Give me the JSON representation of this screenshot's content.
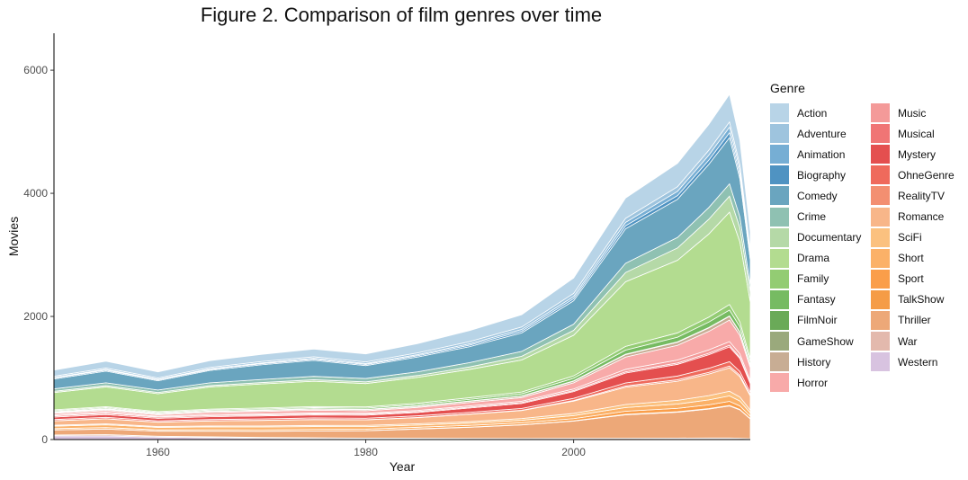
{
  "chart_data": {
    "type": "area",
    "title": "Figure 2. Comparison of film genres over time",
    "xlabel": "Year",
    "ylabel": "Movies",
    "xlim": [
      1950,
      2017
    ],
    "ylim": [
      0,
      6600
    ],
    "x_ticks": [
      1960,
      1980,
      2000
    ],
    "y_ticks": [
      0,
      2000,
      4000,
      6000
    ],
    "grid": false,
    "legend_title": "Genre",
    "legend_position": "right",
    "x": [
      1950,
      1955,
      1960,
      1965,
      1970,
      1975,
      1980,
      1985,
      1990,
      1995,
      2000,
      2005,
      2010,
      2013,
      2015,
      2016,
      2017
    ],
    "series": [
      {
        "name": "Action",
        "color": "#b8d4e7",
        "values": [
          100,
          110,
          100,
          110,
          115,
          125,
          130,
          150,
          180,
          200,
          250,
          330,
          380,
          420,
          450,
          400,
          300
        ]
      },
      {
        "name": "Adventure",
        "color": "#9ec4de",
        "values": [
          20,
          22,
          20,
          22,
          23,
          25,
          26,
          30,
          35,
          40,
          50,
          65,
          75,
          80,
          85,
          75,
          55
        ]
      },
      {
        "name": "Animation",
        "color": "#76aed4",
        "values": [
          10,
          12,
          10,
          12,
          12,
          14,
          15,
          18,
          22,
          28,
          35,
          55,
          70,
          80,
          90,
          80,
          55
        ]
      },
      {
        "name": "Biography",
        "color": "#4f93c2",
        "values": [
          15,
          16,
          15,
          16,
          17,
          18,
          18,
          20,
          24,
          28,
          35,
          50,
          60,
          70,
          80,
          70,
          45
        ]
      },
      {
        "name": "Comedy",
        "color": "#6aa5bf",
        "values": [
          160,
          190,
          150,
          200,
          240,
          260,
          210,
          240,
          260,
          300,
          380,
          560,
          620,
          700,
          750,
          620,
          410
        ]
      },
      {
        "name": "Crime",
        "color": "#8fc1b2",
        "values": [
          40,
          45,
          40,
          45,
          50,
          55,
          55,
          60,
          70,
          80,
          100,
          150,
          170,
          190,
          200,
          175,
          115
        ]
      },
      {
        "name": "Documentary",
        "color": "#b5d9a7",
        "values": [
          20,
          22,
          20,
          22,
          23,
          25,
          27,
          30,
          40,
          60,
          80,
          150,
          200,
          240,
          260,
          230,
          160
        ]
      },
      {
        "name": "Drama",
        "color": "#b3dc90",
        "values": [
          280,
          320,
          290,
          360,
          390,
          410,
          380,
          420,
          460,
          520,
          660,
          1050,
          1180,
          1350,
          1500,
          1300,
          920
        ]
      },
      {
        "name": "Family",
        "color": "#93cc73",
        "values": [
          15,
          16,
          15,
          16,
          17,
          18,
          19,
          22,
          26,
          30,
          38,
          60,
          70,
          80,
          90,
          78,
          52
        ]
      },
      {
        "name": "Fantasy",
        "color": "#76bb62",
        "values": [
          15,
          16,
          14,
          16,
          17,
          18,
          20,
          22,
          26,
          32,
          42,
          65,
          75,
          88,
          95,
          82,
          55
        ]
      },
      {
        "name": "FilmNoir",
        "color": "#6aaa58",
        "values": [
          10,
          12,
          6,
          4,
          3,
          3,
          3,
          3,
          3,
          3,
          3,
          3,
          3,
          3,
          3,
          3,
          2
        ]
      },
      {
        "name": "GameShow",
        "color": "#9aa97c",
        "values": [
          3,
          3,
          3,
          3,
          3,
          3,
          3,
          3,
          3,
          3,
          3,
          5,
          5,
          5,
          5,
          4,
          3
        ]
      },
      {
        "name": "History",
        "color": "#c8ad94",
        "values": [
          15,
          16,
          15,
          16,
          16,
          17,
          17,
          18,
          20,
          22,
          26,
          40,
          48,
          55,
          60,
          52,
          35
        ]
      },
      {
        "name": "Horror",
        "color": "#f8aaa9",
        "values": [
          25,
          28,
          25,
          35,
          40,
          45,
          40,
          50,
          55,
          60,
          100,
          200,
          240,
          300,
          350,
          300,
          210
        ]
      },
      {
        "name": "Music",
        "color": "#f49a99",
        "values": [
          15,
          16,
          14,
          16,
          16,
          16,
          16,
          18,
          20,
          22,
          26,
          40,
          48,
          55,
          60,
          52,
          36
        ]
      },
      {
        "name": "Musical",
        "color": "#f07575",
        "values": [
          20,
          22,
          18,
          18,
          17,
          16,
          15,
          14,
          14,
          14,
          16,
          20,
          22,
          24,
          26,
          22,
          15
        ]
      },
      {
        "name": "Mystery",
        "color": "#e44f4f",
        "values": [
          40,
          45,
          40,
          45,
          48,
          50,
          50,
          55,
          70,
          80,
          110,
          160,
          190,
          220,
          240,
          210,
          140
        ]
      },
      {
        "name": "OhneGenre",
        "color": "#ef6a5c",
        "values": [
          20,
          22,
          20,
          22,
          22,
          24,
          24,
          26,
          28,
          30,
          35,
          50,
          60,
          66,
          70,
          60,
          40
        ]
      },
      {
        "name": "RealityTV",
        "color": "#f38f71",
        "values": [
          3,
          3,
          3,
          3,
          3,
          3,
          3,
          3,
          4,
          5,
          10,
          20,
          25,
          28,
          30,
          26,
          18
        ]
      },
      {
        "name": "Romance",
        "color": "#f8b689",
        "values": [
          70,
          80,
          70,
          80,
          90,
          95,
          90,
          100,
          120,
          130,
          200,
          280,
          310,
          350,
          380,
          330,
          230
        ]
      },
      {
        "name": "SciFi",
        "color": "#fbc17f",
        "values": [
          15,
          16,
          14,
          16,
          17,
          18,
          20,
          22,
          25,
          28,
          35,
          50,
          60,
          70,
          75,
          65,
          45
        ]
      },
      {
        "name": "Short",
        "color": "#fbb168",
        "values": [
          40,
          45,
          40,
          45,
          45,
          45,
          40,
          35,
          35,
          40,
          50,
          60,
          70,
          80,
          90,
          80,
          55
        ]
      },
      {
        "name": "Sport",
        "color": "#fa9e4a",
        "values": [
          20,
          22,
          20,
          22,
          22,
          24,
          24,
          26,
          28,
          30,
          35,
          50,
          55,
          60,
          65,
          56,
          38
        ]
      },
      {
        "name": "TalkShow",
        "color": "#f59c46",
        "values": [
          3,
          3,
          3,
          3,
          3,
          3,
          3,
          3,
          4,
          5,
          6,
          8,
          8,
          9,
          9,
          8,
          6
        ]
      },
      {
        "name": "Thriller",
        "color": "#eda878",
        "values": [
          80,
          90,
          80,
          90,
          100,
          110,
          120,
          150,
          180,
          220,
          280,
          380,
          420,
          470,
          520,
          460,
          320
        ]
      },
      {
        "name": "War",
        "color": "#e3b9ad",
        "values": [
          15,
          20,
          15,
          15,
          14,
          14,
          13,
          13,
          13,
          13,
          14,
          16,
          17,
          18,
          19,
          16,
          11
        ]
      },
      {
        "name": "Western",
        "color": "#d8c3e0",
        "values": [
          60,
          60,
          40,
          30,
          20,
          15,
          10,
          8,
          6,
          5,
          5,
          6,
          7,
          7,
          7,
          6,
          4
        ]
      }
    ]
  }
}
